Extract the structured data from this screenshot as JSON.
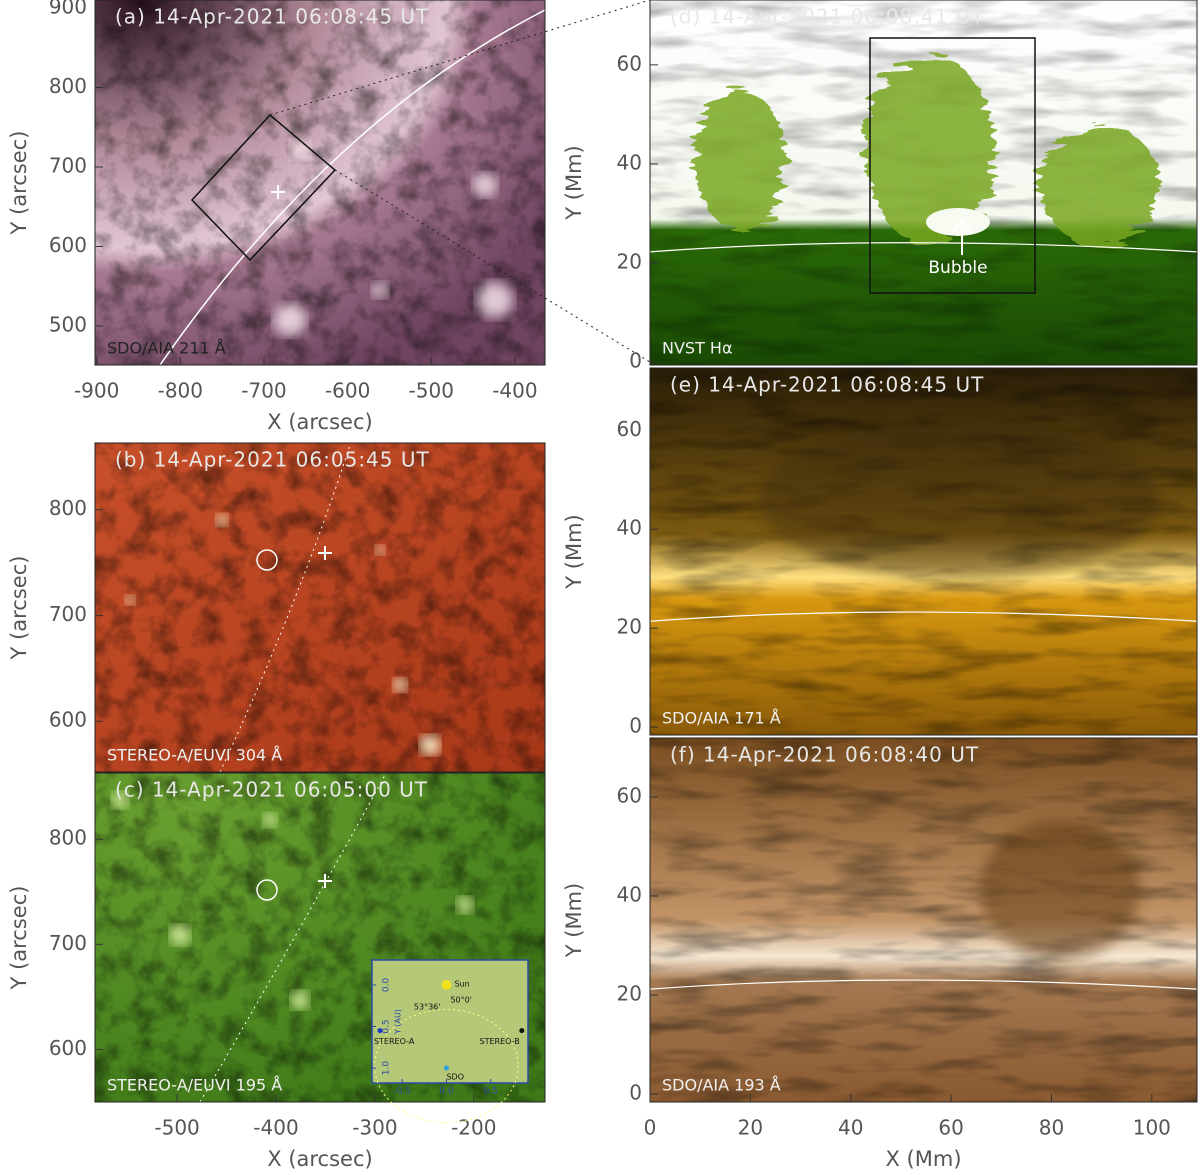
{
  "chart_data": [
    {
      "type": "image",
      "title": "(a) 14-Apr-2021 06:08:45 UT",
      "label": "SDO/AIA 211 Å",
      "xlabel": "X (arcsec)",
      "ylabel": "Y (arcsec)",
      "xlim": [
        -902,
        -364
      ],
      "ylim": [
        451,
        910
      ],
      "xticks": [
        -900,
        -800,
        -700,
        -600,
        -500,
        -400
      ],
      "yticks": [
        500,
        600,
        700,
        800,
        900
      ]
    },
    {
      "type": "image",
      "title": "(b) 14-Apr-2021 06:05:45 UT",
      "label": "STEREO-A/EUVI 304 Å",
      "ylabel": "Y (arcsec)",
      "xlim": [
        -583,
        -128
      ],
      "ylim": [
        552,
        863
      ],
      "yticks": [
        600,
        700,
        800
      ]
    },
    {
      "type": "image",
      "title": "(c) 14-Apr-2021 06:05:00 UT",
      "label": "STEREO-A/EUVI 195 Å",
      "xlabel": "X (arcsec)",
      "ylabel": "Y (arcsec)",
      "xlim": [
        -583,
        -128
      ],
      "ylim": [
        550,
        863
      ],
      "xticks": [
        -500,
        -400,
        -300,
        -200
      ],
      "yticks": [
        600,
        700,
        800
      ],
      "inset": {
        "type": "scatter",
        "ylabel": "Y (AU)",
        "xlim": [
          -0.84,
          0.92
        ],
        "ylim": [
          1.18,
          -0.3
        ],
        "xticks": [
          -0.5,
          {
            "value": 0,
            "label": "0.0"
          },
          0.5
        ],
        "yticks": [
          {
            "value": 0,
            "label": "0.0"
          },
          0.5,
          {
            "value": 1,
            "label": "1.0"
          }
        ],
        "names": [
          "Sun",
          "STEREO-A",
          "STEREO-B",
          "SDO"
        ],
        "x": [
          0,
          -0.75,
          0.85,
          0
        ],
        "y": [
          0,
          0.55,
          0.55,
          1.0
        ],
        "colors": [
          "#f0e020",
          "#1a3acc",
          "#111111",
          "#2aa0e0"
        ],
        "angles": [
          "53°36'",
          "50°0'"
        ]
      }
    },
    {
      "type": "image",
      "title": "(d) 14-Apr-2021 06:08:41 UT",
      "label": "NVST Hα",
      "ylabel": "Y (Mm)",
      "annotations": [
        "Bubble"
      ],
      "xlim": [
        0,
        109
      ],
      "ylim": [
        -0.6,
        73.1
      ],
      "yticks": [
        0,
        20,
        40,
        60
      ]
    },
    {
      "type": "image",
      "title": "(e) 14-Apr-2021 06:08:45 UT",
      "label": "SDO/AIA 171 Å",
      "ylabel": "Y (Mm)",
      "xlim": [
        0,
        109
      ],
      "ylim": [
        -1.6,
        72.6
      ],
      "yticks": [
        0,
        20,
        40,
        60
      ]
    },
    {
      "type": "image",
      "title": "(f) 14-Apr-2021 06:08:40 UT",
      "label": "SDO/AIA 193 Å",
      "xlabel": "X (Mm)",
      "ylabel": "Y (Mm)",
      "xlim": [
        0,
        109
      ],
      "ylim": [
        -1.6,
        71.9
      ],
      "xticks": [
        0,
        20,
        40,
        60,
        80,
        100
      ],
      "yticks": [
        0,
        20,
        40,
        60
      ]
    }
  ]
}
